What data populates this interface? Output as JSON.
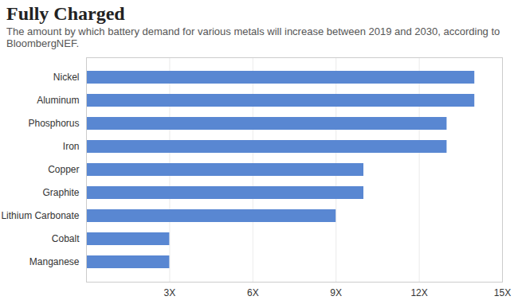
{
  "chart_data": {
    "type": "bar",
    "orientation": "horizontal",
    "title": "Fully Charged",
    "subtitle": "The amount by which battery demand for various metals will increase between 2019 and 2030, according to BloombergNEF.",
    "categories": [
      "Nickel",
      "Aluminum",
      "Phosphorus",
      "Iron",
      "Copper",
      "Graphite",
      "Lithium Carbonate",
      "Cobalt",
      "Manganese"
    ],
    "values": [
      14,
      14,
      13,
      13,
      10,
      10,
      9,
      3,
      3
    ],
    "color": "#5987d2",
    "xlim": [
      0,
      15
    ],
    "xticks": [
      {
        "value": 3,
        "label": "3X"
      },
      {
        "value": 6,
        "label": "6X"
      },
      {
        "value": 9,
        "label": "9X"
      },
      {
        "value": 12,
        "label": "12X"
      },
      {
        "value": 15,
        "label": "15X"
      }
    ],
    "grid": true
  }
}
